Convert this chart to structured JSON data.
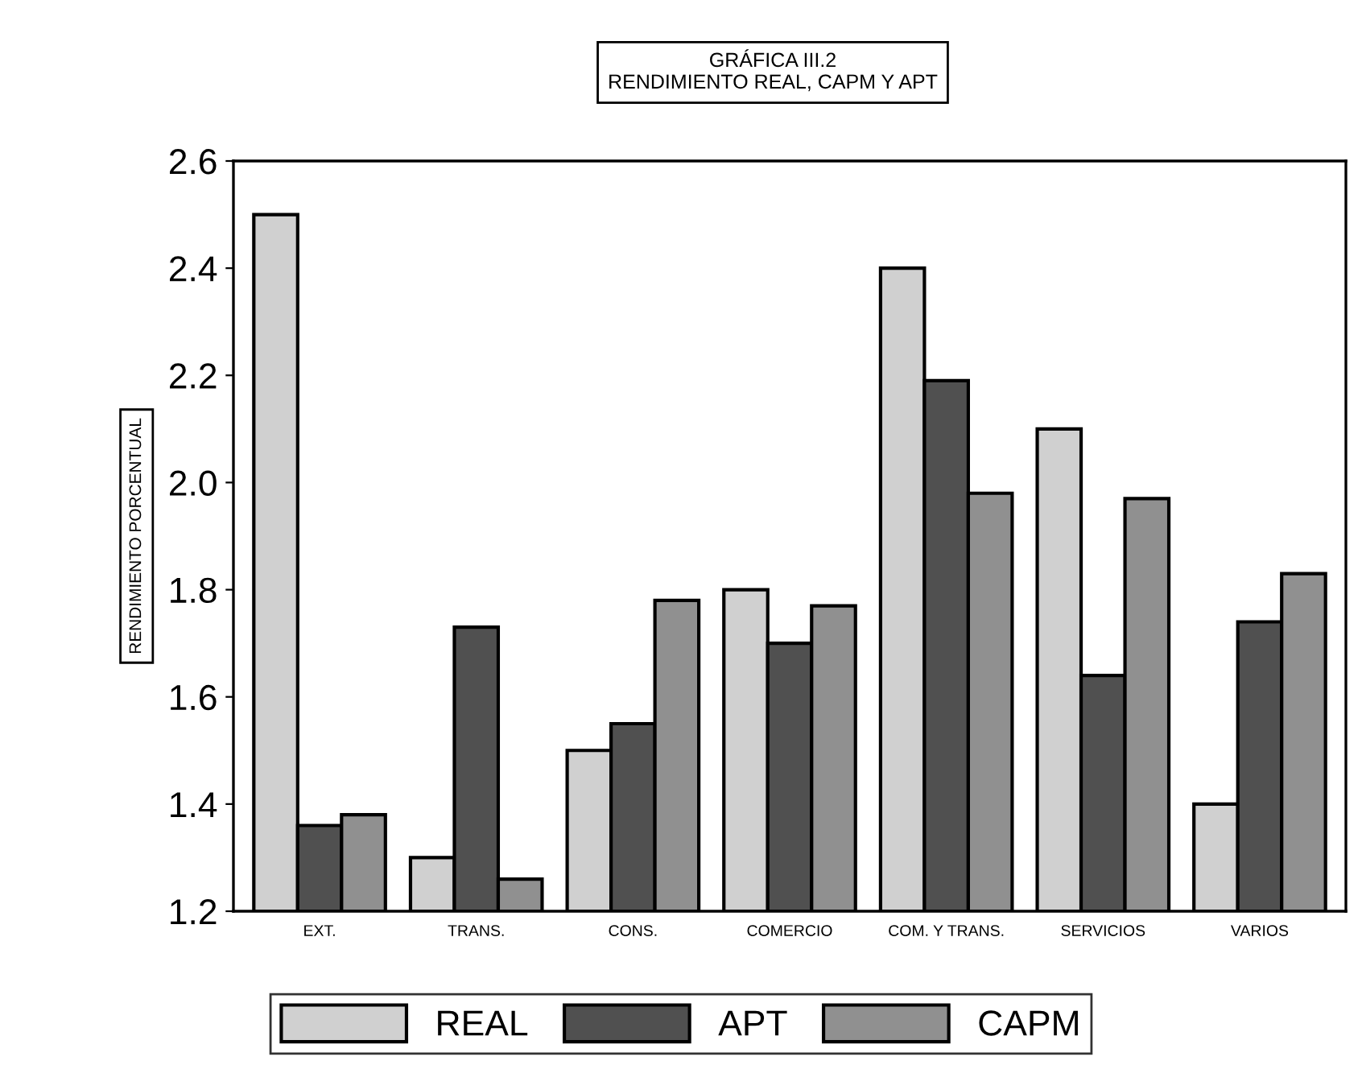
{
  "chart_data": {
    "type": "bar",
    "title": "GRÁFICA III.2\nRENDIMIENTO REAL, CAPM Y APT",
    "ylabel": "RENDIMIENTO PORCENTUAL",
    "categories": [
      "EXT.",
      "TRANS.",
      "CONS.",
      "COMERCIO",
      "COM. Y TRANS.",
      "SERVICIOS",
      "VARIOS"
    ],
    "series": [
      {
        "name": "REAL",
        "color": "#d0d0d0",
        "values": [
          2.5,
          1.3,
          1.5,
          1.8,
          2.4,
          2.1,
          1.4
        ]
      },
      {
        "name": "APT",
        "color": "#505050",
        "values": [
          1.36,
          1.73,
          1.55,
          1.7,
          2.19,
          1.64,
          1.74
        ]
      },
      {
        "name": "CAPM",
        "color": "#909090",
        "values": [
          1.38,
          1.26,
          1.78,
          1.77,
          1.98,
          1.97,
          1.83
        ]
      }
    ],
    "ylim": [
      1.2,
      2.6
    ],
    "yticks": [
      {
        "value": 1.2,
        "label": "1.2"
      },
      {
        "value": 1.4,
        "label": "1.4"
      },
      {
        "value": 1.6,
        "label": "1.6"
      },
      {
        "value": 1.8,
        "label": "1.8"
      },
      {
        "value": 2.0,
        "label": "2.0"
      },
      {
        "value": 2.2,
        "label": "2.2"
      },
      {
        "value": 2.4,
        "label": "2.4"
      },
      {
        "value": 2.6,
        "label": "2.6"
      }
    ],
    "grid": false,
    "legend": "bottom"
  }
}
